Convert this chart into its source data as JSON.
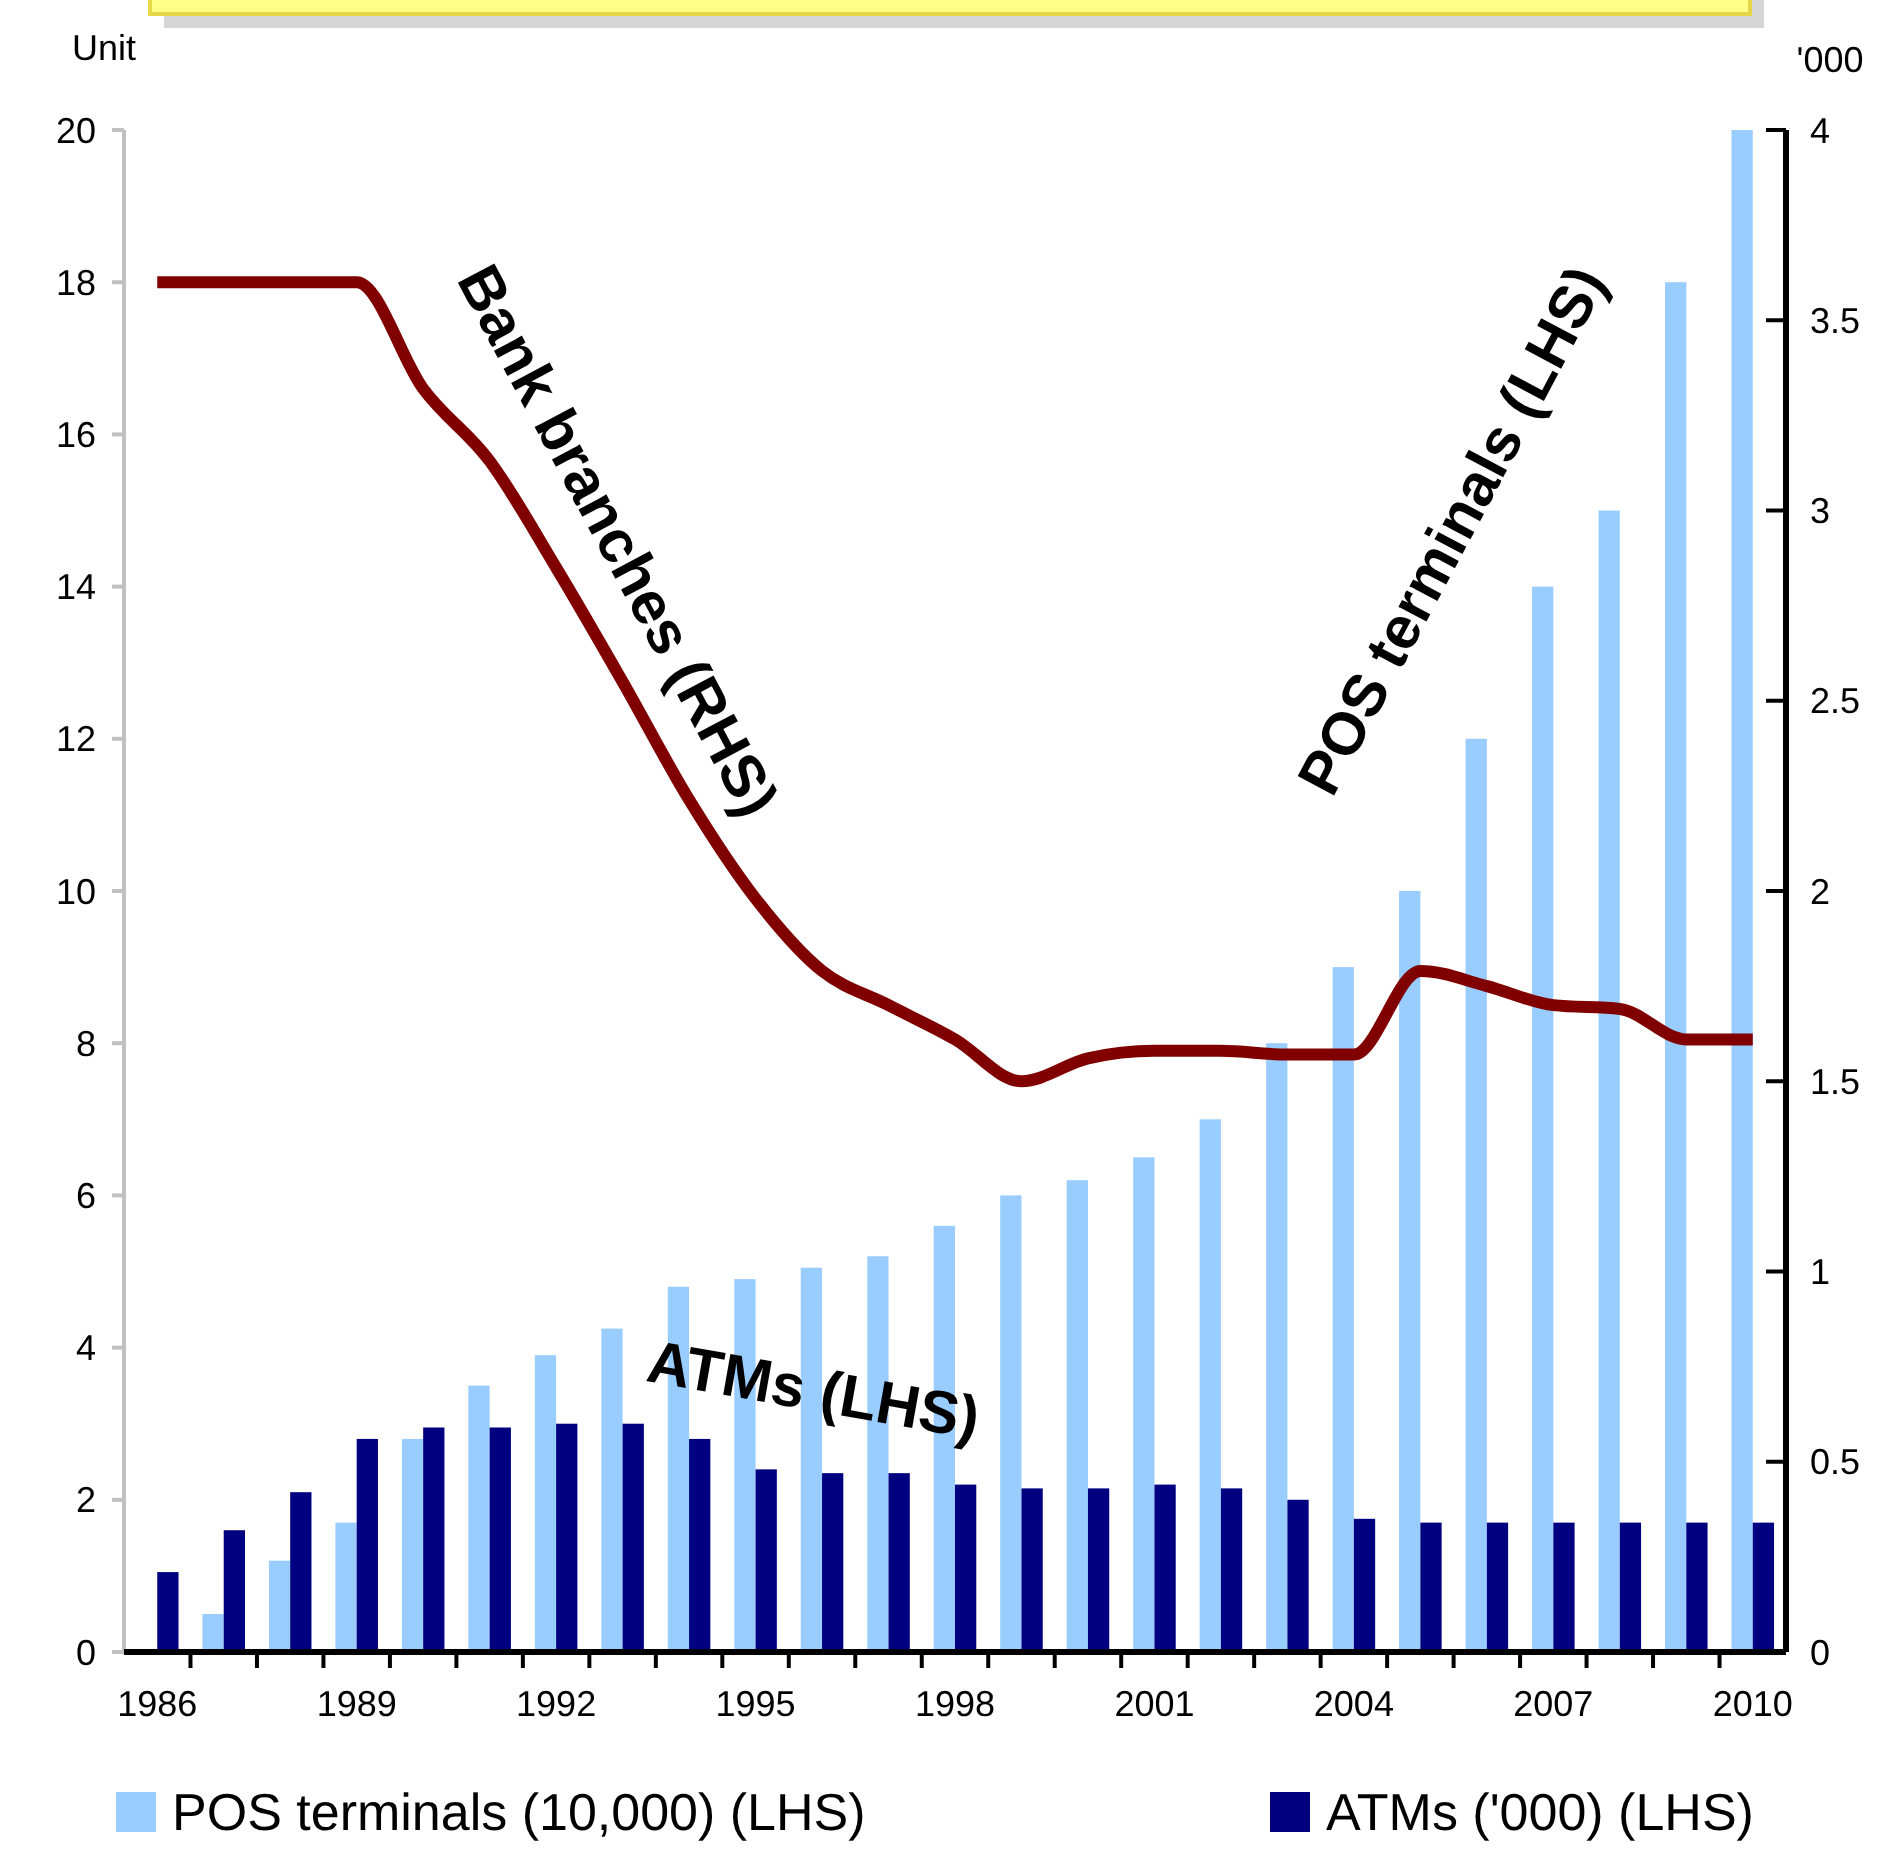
{
  "chart_data": {
    "type": "bar",
    "ylabel": "Unit",
    "y2label": "'000",
    "x": [
      1986,
      1987,
      1988,
      1989,
      1990,
      1991,
      1992,
      1993,
      1994,
      1995,
      1996,
      1997,
      1998,
      1999,
      2000,
      2001,
      2002,
      2003,
      2004,
      2005,
      2006,
      2007,
      2008,
      2009,
      2010
    ],
    "series": [
      {
        "name": "POS terminals (10,000) (LHS)",
        "color": "#99ccff",
        "values": [
          null,
          0.5,
          1.2,
          1.7,
          2.8,
          3.5,
          3.9,
          4.25,
          4.8,
          4.9,
          5.05,
          5.2,
          5.6,
          6.0,
          6.2,
          6.5,
          7.0,
          8.0,
          9.0,
          10.0,
          12.0,
          14.0,
          15.0,
          18.0,
          20.0
        ]
      },
      {
        "name": "ATMs ('000) (LHS)",
        "color": "#000080",
        "values": [
          1.05,
          1.6,
          2.1,
          2.8,
          2.95,
          2.95,
          3.0,
          3.0,
          2.8,
          2.4,
          2.35,
          2.35,
          2.2,
          2.15,
          2.15,
          2.2,
          2.15,
          2.0,
          1.75,
          1.7,
          1.7,
          1.7,
          1.7,
          1.7,
          1.7
        ]
      },
      {
        "name": "Bank branches (RHS)",
        "type": "line",
        "axis": "y2",
        "color": "#800000",
        "values": [
          3.6,
          3.6,
          3.6,
          3.6,
          3.32,
          3.13,
          2.85,
          2.55,
          2.24,
          1.98,
          1.79,
          1.7,
          1.61,
          1.5,
          1.56,
          1.58,
          1.58,
          1.57,
          1.57,
          1.79,
          1.75,
          1.7,
          1.69,
          1.61,
          1.61
        ]
      }
    ],
    "annotations": [
      "POS terminals (LHS)",
      "ATMs (LHS)"
    ],
    "xlim": [
      1985.5,
      2010.5
    ],
    "xticks": [
      1986,
      1989,
      1992,
      1995,
      1998,
      2001,
      2004,
      2007,
      2010,
      {
        "value": 1986.5,
        "label": null
      },
      {
        "value": 1987.5,
        "label": null
      },
      {
        "value": 1988.5,
        "label": null
      },
      {
        "value": 1989.5,
        "label": null
      },
      {
        "value": 1990.5,
        "label": null
      },
      {
        "value": 1991.5,
        "label": null
      },
      {
        "value": 1992.5,
        "label": null
      },
      {
        "value": 1993.5,
        "label": null
      },
      {
        "value": 1994.5,
        "label": null
      },
      {
        "value": 1995.5,
        "label": null
      },
      {
        "value": 1996.5,
        "label": null
      },
      {
        "value": 1997.5,
        "label": null
      },
      {
        "value": 1998.5,
        "label": null
      },
      {
        "value": 1999.5,
        "label": null
      },
      {
        "value": 2000.5,
        "label": null
      },
      {
        "value": 2001.5,
        "label": null
      },
      {
        "value": 2002.5,
        "label": null
      },
      {
        "value": 2003.5,
        "label": null
      },
      {
        "value": 2004.5,
        "label": null
      },
      {
        "value": 2005.5,
        "label": null
      },
      {
        "value": 2006.5,
        "label": null
      },
      {
        "value": 2007.5,
        "label": null
      },
      {
        "value": 2008.5,
        "label": null
      },
      {
        "value": 2009.5,
        "label": null
      }
    ],
    "ylim": [
      0,
      20
    ],
    "yticks": [
      0,
      2,
      4,
      6,
      8,
      10,
      12,
      14,
      16,
      18,
      20
    ],
    "y2lim": [
      0,
      4
    ],
    "y2ticks": [
      0,
      0.5,
      1,
      1.5,
      2,
      2.5,
      3,
      3.5,
      4
    ],
    "legend": "bottom"
  }
}
